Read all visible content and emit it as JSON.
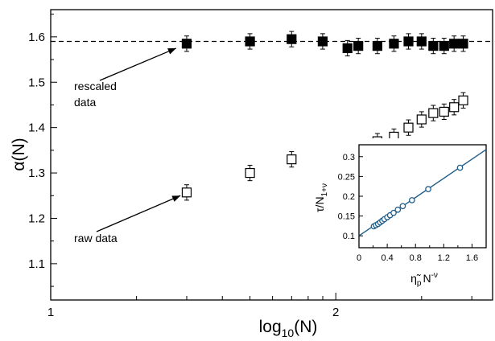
{
  "chart_data": [
    {
      "type": "scatter",
      "xlabel": "log10(N)",
      "xlabel_main": "log",
      "xlabel_sub": "10",
      "xlabel_tail": "(N)",
      "ylabel": "α(N)",
      "xlim": [
        1.0,
        2.55
      ],
      "ylim": [
        1.02,
        1.66
      ],
      "x_ticks": [
        "1",
        "2"
      ],
      "y_ticks": [
        "1.1",
        "1.2",
        "1.3",
        "1.4",
        "1.5",
        "1.6"
      ],
      "reference_line": {
        "y": 1.59,
        "style": "dashed"
      },
      "series": [
        {
          "marker": "filled-square",
          "x": [
            1.477,
            1.699,
            1.845,
            1.954,
            2.041,
            2.079,
            2.146,
            2.204,
            2.255,
            2.301,
            2.342,
            2.38,
            2.415,
            2.447
          ],
          "y": [
            1.585,
            1.59,
            1.595,
            1.59,
            1.575,
            1.58,
            1.58,
            1.585,
            1.59,
            1.59,
            1.58,
            1.58,
            1.585,
            1.585
          ],
          "err": [
            0.017,
            0.017,
            0.017,
            0.017,
            0.017,
            0.017,
            0.017,
            0.017,
            0.017,
            0.017,
            0.017,
            0.017,
            0.017,
            0.017
          ]
        },
        {
          "marker": "open-square",
          "x": [
            1.477,
            1.699,
            1.845,
            1.954,
            2.041,
            2.146,
            2.204,
            2.255,
            2.301,
            2.342,
            2.38,
            2.415,
            2.447
          ],
          "y": [
            1.257,
            1.3,
            1.33,
            1.345,
            1.35,
            1.37,
            1.38,
            1.4,
            1.418,
            1.432,
            1.435,
            1.445,
            1.46
          ],
          "err": [
            0.017,
            0.017,
            0.017,
            0.017,
            0.017,
            0.017,
            0.017,
            0.017,
            0.017,
            0.017,
            0.017,
            0.017,
            0.017
          ]
        }
      ],
      "annotations": [
        {
          "lines": [
            "rescaled",
            "data"
          ],
          "arrow_to": {
            "x": 1.44,
            "y": 1.575
          }
        },
        {
          "lines": [
            "raw data"
          ],
          "arrow_to": {
            "x": 1.455,
            "y": 1.25
          }
        }
      ]
    },
    {
      "type": "scatter",
      "xlabel": "η̃pN-ν",
      "xlabel_main": "η̃",
      "xlabel_sub": "p",
      "xlabel_tail": "N",
      "xlabel_sup": "-ν",
      "ylabel": "τ/N1+ν",
      "ylabel_main": "τ/N",
      "ylabel_sub": "1+ν",
      "xlim": [
        0,
        1.8
      ],
      "ylim": [
        0.07,
        0.33
      ],
      "x_ticks": [
        "0",
        "0.4",
        "0.8",
        "1.2",
        "1.6"
      ],
      "y_ticks": [
        "0.1",
        "0.15",
        "0.2",
        "0.25",
        "0.3"
      ],
      "fit_line": {
        "x": [
          0,
          1.8
        ],
        "y": [
          0.1,
          0.318
        ]
      },
      "series": [
        {
          "marker": "open-circle",
          "x": [
            0.21,
            0.24,
            0.27,
            0.3,
            0.33,
            0.36,
            0.4,
            0.44,
            0.49,
            0.55,
            0.62,
            0.75,
            0.98,
            1.43
          ],
          "y": [
            0.124,
            0.127,
            0.13,
            0.134,
            0.138,
            0.142,
            0.147,
            0.152,
            0.158,
            0.166,
            0.175,
            0.19,
            0.218,
            0.272
          ]
        }
      ]
    }
  ]
}
